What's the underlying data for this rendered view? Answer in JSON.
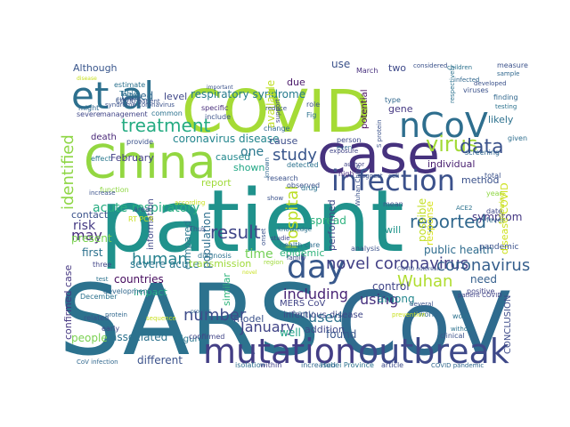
{
  "title": "",
  "words": [
    {
      "text": "patient",
      "color": "#20928c"
    },
    {
      "text": "SARS",
      "color": "#2c728e"
    },
    {
      "text": "CoV",
      "color": "#2f6b8e"
    },
    {
      "text": "COVID",
      "color": "#a5db36"
    },
    {
      "text": "China",
      "color": "#93d741"
    },
    {
      "text": "case",
      "color": "#46327e"
    },
    {
      "text": "et al",
      "color": "#2d708e"
    },
    {
      "text": "mutation",
      "color": "#433e85"
    },
    {
      "text": "outbreak",
      "color": "#3e4989"
    },
    {
      "text": "infection",
      "color": "#3b518b"
    },
    {
      "text": "nCoV",
      "color": "#2e6e8e"
    },
    {
      "text": "day",
      "color": "#38588c"
    },
    {
      "text": "treatment",
      "color": "#25ab82"
    },
    {
      "text": "virus",
      "color": "#a2da37"
    },
    {
      "text": "data",
      "color": "#3b528b"
    },
    {
      "text": "reported",
      "color": "#31688e"
    },
    {
      "text": "novel coronavirus",
      "color": "#424086"
    },
    {
      "text": "Wuhan",
      "color": "#b0dd2f"
    },
    {
      "text": "coronavirus",
      "color": "#355f8d"
    },
    {
      "text": "human",
      "color": "#26828e"
    },
    {
      "text": "result",
      "color": "#404688"
    },
    {
      "text": "study",
      "color": "#39568c"
    },
    {
      "text": "number",
      "color": "#3e4c8a"
    },
    {
      "text": "January",
      "color": "#414487"
    },
    {
      "text": "including",
      "color": "#482475"
    },
    {
      "text": "used",
      "color": "#2c728e"
    },
    {
      "text": "hospital",
      "color": "#bddf26"
    },
    {
      "text": "using",
      "color": "#46307e"
    },
    {
      "text": "may",
      "color": "#472c7a"
    },
    {
      "text": "identified",
      "color": "#8ed645"
    },
    {
      "text": "acute respiratory",
      "color": "#27ad81"
    },
    {
      "text": "respiratory syndrome",
      "color": "#287c8e"
    },
    {
      "text": "coronavirus disease",
      "color": "#24868e"
    },
    {
      "text": "based",
      "color": "#31688e"
    },
    {
      "text": "Although",
      "color": "#39568c"
    },
    {
      "text": "level",
      "color": "#3f4788"
    },
    {
      "text": "caused",
      "color": "#23898e"
    },
    {
      "text": "February",
      "color": "#433e85"
    },
    {
      "text": "one",
      "color": "#2a788e"
    },
    {
      "text": "shown",
      "color": "#22a785"
    },
    {
      "text": "time",
      "color": "#73d056"
    },
    {
      "text": "risk",
      "color": "#443983"
    },
    {
      "text": "severe acute",
      "color": "#2a778e"
    },
    {
      "text": "public health",
      "color": "#2f6c8e"
    },
    {
      "text": "symptom",
      "color": "#453882"
    },
    {
      "text": "method",
      "color": "#3b528b"
    },
    {
      "text": "individual",
      "color": "#481f70"
    },
    {
      "text": "likely",
      "color": "#2d718e"
    },
    {
      "text": "spread",
      "color": "#2db27d"
    },
    {
      "text": "will",
      "color": "#1f958b"
    },
    {
      "text": "possible",
      "color": "#c2df23"
    },
    {
      "text": "response",
      "color": "#d8e219"
    },
    {
      "text": "disease COVID",
      "color": "#cde11d"
    },
    {
      "text": "CONCLUSION",
      "color": "#3e4c8a"
    },
    {
      "text": "pandemic",
      "color": "#3b528b"
    },
    {
      "text": "need",
      "color": "#355f8d"
    },
    {
      "text": "control",
      "color": "#404588"
    },
    {
      "text": "among",
      "color": "#24878e"
    },
    {
      "text": "well",
      "color": "#20a386"
    },
    {
      "text": "addition",
      "color": "#3f4889"
    },
    {
      "text": "found",
      "color": "#39568c"
    },
    {
      "text": "MERS CoV",
      "color": "#414487"
    },
    {
      "text": "many",
      "color": "#31688e"
    },
    {
      "text": "model",
      "color": "#3b528b"
    },
    {
      "text": "compared",
      "color": "#2a788e"
    },
    {
      "text": "countries",
      "color": "#460b5e"
    },
    {
      "text": "impact",
      "color": "#22a884"
    },
    {
      "text": "associated",
      "color": "#2c728e"
    },
    {
      "text": "people",
      "color": "#7ad151"
    },
    {
      "text": "different",
      "color": "#3b528b"
    },
    {
      "text": "Figure",
      "color": "#2a778e"
    },
    {
      "text": "confirmed case",
      "color": "#453781"
    },
    {
      "text": "transmission",
      "color": "#9fda3a"
    },
    {
      "text": "first",
      "color": "#2c718e"
    },
    {
      "text": "present",
      "color": "#7ad151"
    },
    {
      "text": "contact",
      "color": "#3b528b"
    },
    {
      "text": "information",
      "color": "#3f4889"
    },
    {
      "text": "population",
      "color": "#2e6f8e"
    },
    {
      "text": "report",
      "color": "#a0da39"
    },
    {
      "text": "performed",
      "color": "#3f4788"
    },
    {
      "text": "epidemic",
      "color": "#2fb47c"
    },
    {
      "text": "similar",
      "color": "#2fb47c"
    },
    {
      "text": "potential",
      "color": "#460a5d"
    },
    {
      "text": "gene",
      "color": "#453882"
    },
    {
      "text": "two",
      "color": "#3e4989"
    },
    {
      "text": "use",
      "color": "#3b528b"
    },
    {
      "text": "due",
      "color": "#481668"
    },
    {
      "text": "available",
      "color": "#c0df25"
    },
    {
      "text": "cause",
      "color": "#3d4e8a"
    },
    {
      "text": "death",
      "color": "#482677"
    },
    {
      "text": "infectious disease",
      "color": "#3f4788"
    },
    {
      "text": "health care",
      "color": "#2e6e8e"
    },
    {
      "text": "analysis",
      "color": "#3b528b"
    },
    {
      "text": "March",
      "color": "#472f7d"
    },
    {
      "text": "type",
      "color": "#31688e"
    },
    {
      "text": "Hubei Province",
      "color": "#2c728e"
    },
    {
      "text": "article",
      "color": "#3e4c8a"
    },
    {
      "text": "isolation",
      "color": "#2e6e8e"
    },
    {
      "text": "within",
      "color": "#424086"
    },
    {
      "text": "increased",
      "color": "#31688e"
    },
    {
      "text": "clinical",
      "color": "#3b528b"
    },
    {
      "text": "Table",
      "color": "#2c728e"
    },
    {
      "text": "current",
      "color": "#38588c"
    },
    {
      "text": "provide",
      "color": "#3b528b"
    },
    {
      "text": "severe",
      "color": "#3f4788"
    },
    {
      "text": "management",
      "color": "#414487"
    },
    {
      "text": "common",
      "color": "#2c728e"
    },
    {
      "text": "specific",
      "color": "#472d7b"
    },
    {
      "text": "might",
      "color": "#31688e"
    },
    {
      "text": "estimate",
      "color": "#2c728e"
    },
    {
      "text": "COVID patient",
      "color": "#3b528b"
    },
    {
      "text": "effect",
      "color": "#2a788e"
    },
    {
      "text": "research",
      "color": "#3b528b"
    },
    {
      "text": "detected",
      "color": "#2c728e"
    },
    {
      "text": "high",
      "color": "#482878"
    },
    {
      "text": "observed",
      "color": "#3b528b"
    },
    {
      "text": "person",
      "color": "#3e4989"
    },
    {
      "text": "even",
      "color": "#31688e"
    },
    {
      "text": "children",
      "color": "#2c728e"
    },
    {
      "text": "viruses",
      "color": "#3b528b"
    },
    {
      "text": "given",
      "color": "#2e6e8e"
    },
    {
      "text": "screening",
      "color": "#31688e"
    },
    {
      "text": "total",
      "color": "#3b528b"
    },
    {
      "text": "year",
      "color": "#8fd744"
    },
    {
      "text": "date",
      "color": "#3f4889"
    },
    {
      "text": "fever",
      "color": "#31688e"
    },
    {
      "text": "work",
      "color": "#2c728e"
    },
    {
      "text": "positive",
      "color": "#414487"
    },
    {
      "text": "world",
      "color": "#31688e"
    },
    {
      "text": "Several",
      "color": "#3b528b"
    },
    {
      "text": "early",
      "color": "#3f4788"
    },
    {
      "text": "development",
      "color": "#31688e"
    },
    {
      "text": "related",
      "color": "#3b528b"
    },
    {
      "text": "December",
      "color": "#2c728e"
    },
    {
      "text": "three",
      "color": "#414487"
    },
    {
      "text": "area",
      "color": "#3b528b"
    },
    {
      "text": "RT PCR",
      "color": "#c8e020"
    },
    {
      "text": "Thus",
      "color": "#3b528b"
    },
    {
      "text": "diagnosis",
      "color": "#2c728e"
    },
    {
      "text": "onset",
      "color": "#3b528b"
    },
    {
      "text": "studie",
      "color": "#414487"
    },
    {
      "text": "family",
      "color": "#3e4989"
    },
    {
      "text": "region",
      "color": "#9fda3a"
    },
    {
      "text": "mean",
      "color": "#3b528b"
    },
    {
      "text": "change",
      "color": "#31688e"
    },
    {
      "text": "role",
      "color": "#3b528b"
    },
    {
      "text": "Fig",
      "color": "#2c728e"
    },
    {
      "text": "reduce",
      "color": "#3b528b"
    },
    {
      "text": "support",
      "color": "#414487"
    },
    {
      "text": "finding",
      "color": "#31688e"
    },
    {
      "text": "testing",
      "color": "#2c728e"
    },
    {
      "text": "measure",
      "color": "#3b528b"
    },
    {
      "text": "sample",
      "color": "#31688e"
    },
    {
      "text": "considered",
      "color": "#3b528b"
    },
    {
      "text": "function",
      "color": "#8fd744"
    },
    {
      "text": "increase",
      "color": "#3b528b"
    },
    {
      "text": "test",
      "color": "#2c728e"
    },
    {
      "text": "confirmed",
      "color": "#414487"
    },
    {
      "text": "CoV infection",
      "color": "#31688e"
    },
    {
      "text": "syndrome coronavirus",
      "color": "#3b528b"
    },
    {
      "text": "without",
      "color": "#2c728e"
    },
    {
      "text": "following",
      "color": "#c8e020"
    },
    {
      "text": "Wuhan China",
      "color": "#3b528b"
    },
    {
      "text": "protein",
      "color": "#31688e"
    },
    {
      "text": "sequence",
      "color": "#c8e020"
    },
    {
      "text": "S protein",
      "color": "#3b528b"
    },
    {
      "text": "patient COVID",
      "color": "#414487"
    },
    {
      "text": "COVID pandemic",
      "color": "#31688e"
    },
    {
      "text": "include",
      "color": "#3b528b"
    },
    {
      "text": "drug",
      "color": "#2c728e"
    },
    {
      "text": "exposure",
      "color": "#414487"
    },
    {
      "text": "according",
      "color": "#c8e020"
    },
    {
      "text": "knowledge",
      "color": "#2c728e"
    },
    {
      "text": "show",
      "color": "#3b528b"
    },
    {
      "text": "known",
      "color": "#31688e"
    },
    {
      "text": "suggest",
      "color": "#3b528b"
    },
    {
      "text": "author",
      "color": "#414487"
    },
    {
      "text": "infected",
      "color": "#31688e"
    },
    {
      "text": "respectively",
      "color": "#2c728e"
    },
    {
      "text": "developed",
      "color": "#3b528b"
    },
    {
      "text": "prevention",
      "color": "#c8e020"
    },
    {
      "text": "COVID outbreak",
      "color": "#3b528b"
    },
    {
      "text": "ACE2",
      "color": "#2c728e"
    },
    {
      "text": "cell",
      "color": "#3b528b"
    },
    {
      "text": "novel",
      "color": "#c8e020"
    },
    {
      "text": "process",
      "color": "#31688e"
    },
    {
      "text": "important",
      "color": "#3b528b"
    },
    {
      "text": "disease",
      "color": "#c8e020"
    }
  ]
}
